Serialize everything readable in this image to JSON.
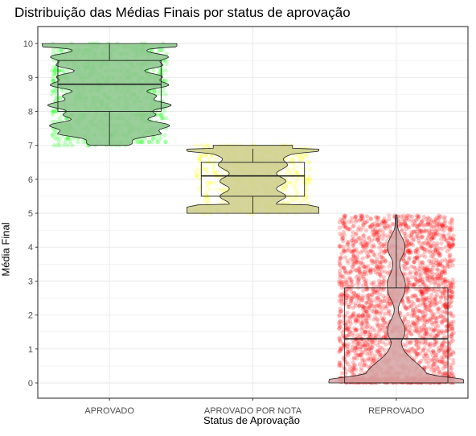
{
  "chart_data": {
    "type": "violin-box-jitter",
    "title": "Distribuição das Médias Finais por status de aprovação",
    "xlabel": "Status de Aprovação",
    "ylabel": "Média Final",
    "categories": [
      "APROVADO",
      "APROVADO POR NOTA",
      "REPROVADO"
    ],
    "ylim": [
      -0.45,
      10.5
    ],
    "yticks": [
      0,
      1,
      2,
      3,
      4,
      5,
      6,
      7,
      8,
      9,
      10
    ],
    "grid": true,
    "legend": "none",
    "groups": [
      {
        "category": "APROVADO",
        "range": [
          7,
          10
        ],
        "box": {
          "min": 7,
          "q1": 8,
          "median": 8.8,
          "q3": 9.5,
          "max": 10
        },
        "point_color": "#00ff00",
        "violin_color": "#8fc98f"
      },
      {
        "category": "APROVADO POR NOTA",
        "range": [
          5,
          7
        ],
        "box": {
          "min": 5,
          "q1": 5.5,
          "median": 6.1,
          "q3": 6.5,
          "max": 6.9
        },
        "point_color": "#ffff00",
        "violin_color": "#cfcf90"
      },
      {
        "category": "REPROVADO",
        "range": [
          0,
          4.95
        ],
        "box": {
          "min": 0,
          "q1": 0,
          "median": 1.3,
          "q3": 2.8,
          "max": 4.9
        },
        "point_color": "#ff0000",
        "violin_color": "#d7a7a7"
      }
    ]
  }
}
